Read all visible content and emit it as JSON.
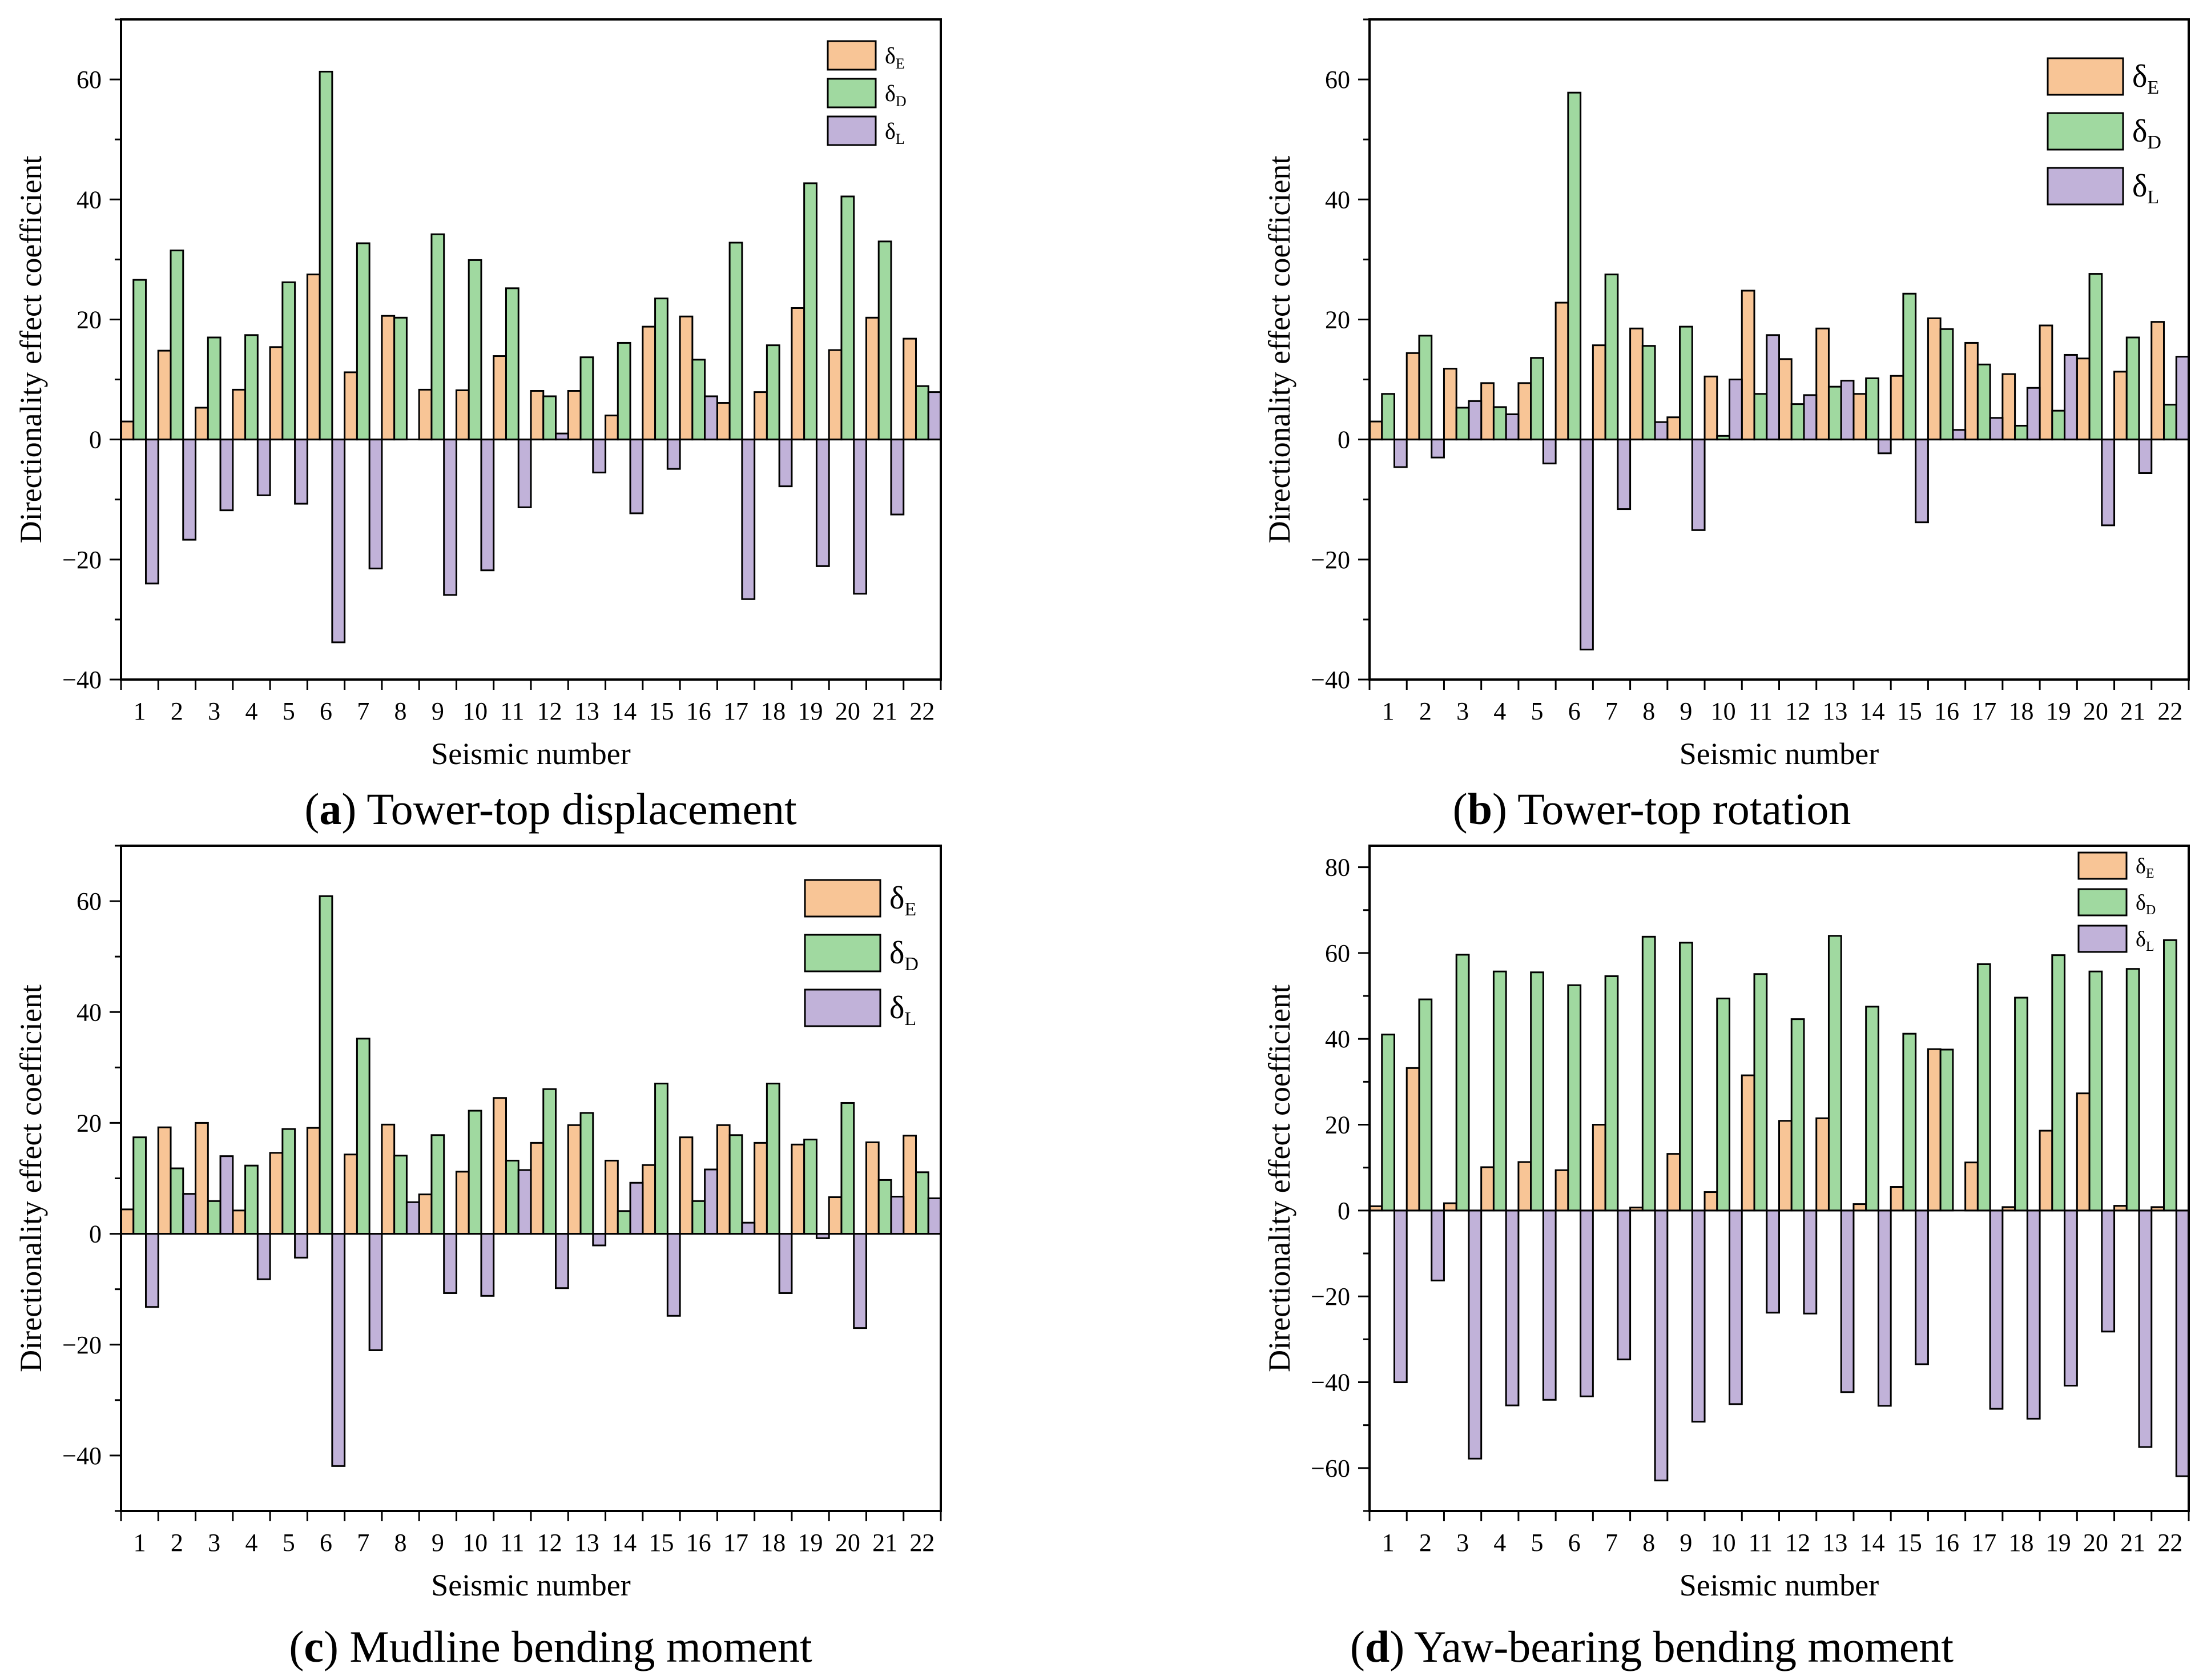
{
  "colors": {
    "E": "#F8C596",
    "D": "#A0D9A0",
    "L": "#C1B2D9",
    "edge": "#000000"
  },
  "chart_data": [
    {
      "type": "bar",
      "caption_letter": "a",
      "caption_text": "Tower-top displacement",
      "xlabel": "Seismic number",
      "ylabel": "Directionality effect coefficient",
      "ylim": [
        -40,
        70
      ],
      "yticks": [
        -40,
        -20,
        0,
        20,
        40,
        60
      ],
      "categories": [
        "1",
        "2",
        "3",
        "4",
        "5",
        "6",
        "7",
        "8",
        "9",
        "10",
        "11",
        "12",
        "13",
        "14",
        "15",
        "16",
        "17",
        "18",
        "19",
        "20",
        "21",
        "22"
      ],
      "legend_position": "top-right",
      "series": [
        {
          "key": "E",
          "name": "δE",
          "values": [
            3,
            14.8,
            5.3,
            8.3,
            15.4,
            27.5,
            11.2,
            20.6,
            8.3,
            8.2,
            13.9,
            8.1,
            8.1,
            4.0,
            18.8,
            20.5,
            6.1,
            7.9,
            21.9,
            14.9,
            20.3,
            16.8
          ]
        },
        {
          "key": "D",
          "name": "δD",
          "values": [
            26.6,
            31.5,
            17.0,
            17.4,
            26.2,
            61.3,
            32.7,
            20.3,
            34.2,
            29.9,
            25.2,
            7.2,
            13.7,
            16.1,
            23.5,
            13.3,
            32.8,
            15.7,
            42.7,
            40.5,
            33.0,
            8.9
          ]
        },
        {
          "key": "L",
          "name": "δL",
          "values": [
            -24,
            -16.7,
            -11.8,
            -9.3,
            -10.7,
            -33.8,
            -21.5,
            0,
            -25.9,
            -21.8,
            -11.3,
            1.0,
            -5.5,
            -12.3,
            -4.9,
            7.2,
            -26.6,
            -7.8,
            -21.1,
            -25.7,
            -12.5,
            7.9
          ]
        }
      ]
    },
    {
      "type": "bar",
      "caption_letter": "b",
      "caption_text": "Tower-top rotation",
      "xlabel": "Seismic number",
      "ylabel": "Directionality effect coefficient",
      "ylim": [
        -40,
        70
      ],
      "yticks": [
        -40,
        -20,
        0,
        20,
        40,
        60
      ],
      "categories": [
        "1",
        "2",
        "3",
        "4",
        "5",
        "6",
        "7",
        "8",
        "9",
        "10",
        "11",
        "12",
        "13",
        "14",
        "15",
        "16",
        "17",
        "18",
        "19",
        "20",
        "21",
        "22"
      ],
      "legend_position": "top-right",
      "series": [
        {
          "key": "E",
          "name": "δE",
          "values": [
            3,
            14.4,
            11.8,
            9.4,
            9.4,
            22.8,
            15.7,
            18.5,
            3.7,
            10.5,
            24.8,
            13.4,
            18.5,
            7.6,
            10.6,
            20.2,
            16.1,
            10.9,
            19.0,
            13.5,
            11.3,
            19.6
          ]
        },
        {
          "key": "D",
          "name": "δD",
          "values": [
            7.6,
            17.3,
            5.3,
            5.4,
            13.6,
            57.8,
            27.5,
            15.6,
            18.8,
            0.6,
            7.6,
            5.9,
            8.8,
            10.2,
            24.3,
            18.4,
            12.5,
            2.3,
            4.8,
            27.6,
            17.0,
            5.8
          ]
        },
        {
          "key": "L",
          "name": "δL",
          "values": [
            -4.6,
            -3.0,
            6.4,
            4.2,
            -4.0,
            -35.0,
            -11.6,
            2.9,
            -15.1,
            10.0,
            17.4,
            7.4,
            9.8,
            -2.3,
            -13.8,
            1.6,
            3.6,
            8.6,
            14.1,
            -14.3,
            -5.6,
            13.8
          ]
        }
      ]
    },
    {
      "type": "bar",
      "caption_letter": "c",
      "caption_text": "Mudline bending moment",
      "xlabel": "Seismic number",
      "ylabel": "Directionality effect coefficient",
      "ylim": [
        -50,
        70
      ],
      "yticks": [
        -40,
        -20,
        0,
        20,
        40,
        60
      ],
      "categories": [
        "1",
        "2",
        "3",
        "4",
        "5",
        "6",
        "7",
        "8",
        "9",
        "10",
        "11",
        "12",
        "13",
        "14",
        "15",
        "16",
        "17",
        "18",
        "19",
        "20",
        "21",
        "22"
      ],
      "legend_position": "top-right",
      "series": [
        {
          "key": "E",
          "name": "δE",
          "values": [
            4.4,
            19.2,
            20.0,
            4.2,
            14.6,
            19.1,
            14.3,
            19.7,
            7.1,
            11.2,
            24.5,
            16.4,
            19.6,
            13.2,
            12.4,
            17.4,
            19.6,
            16.4,
            16.1,
            6.6,
            16.5,
            17.7
          ]
        },
        {
          "key": "D",
          "name": "δD",
          "values": [
            17.4,
            11.8,
            5.9,
            12.3,
            18.9,
            60.9,
            35.2,
            14.1,
            17.8,
            22.2,
            13.2,
            26.1,
            21.8,
            4.1,
            27.1,
            5.9,
            17.8,
            27.1,
            17.0,
            23.6,
            9.7,
            11.1
          ]
        },
        {
          "key": "L",
          "name": "δL",
          "values": [
            -13.2,
            7.2,
            14.0,
            -8.2,
            -4.3,
            -41.9,
            -21.0,
            5.7,
            -10.7,
            -11.2,
            11.5,
            -9.8,
            -2.1,
            9.2,
            -14.8,
            11.6,
            2.0,
            -10.7,
            -0.8,
            -17.0,
            6.7,
            6.4
          ]
        }
      ]
    },
    {
      "type": "bar",
      "caption_letter": "d",
      "caption_text": "Yaw-bearing bending moment",
      "xlabel": "Seismic number",
      "ylabel": "Directionality effect coefficient",
      "ylim": [
        -70,
        85
      ],
      "yticks": [
        -60,
        -40,
        -20,
        0,
        20,
        40,
        60,
        80
      ],
      "categories": [
        "1",
        "2",
        "3",
        "4",
        "5",
        "6",
        "7",
        "8",
        "9",
        "10",
        "11",
        "12",
        "13",
        "14",
        "15",
        "16",
        "17",
        "18",
        "19",
        "20",
        "21",
        "22"
      ],
      "legend_position": "top-right",
      "series": [
        {
          "key": "E",
          "name": "δE",
          "values": [
            1.0,
            33.2,
            1.7,
            10.1,
            11.3,
            9.4,
            20.0,
            0.7,
            13.2,
            4.3,
            31.5,
            20.9,
            21.5,
            1.5,
            5.5,
            37.6,
            11.2,
            0.8,
            18.6,
            27.3,
            1.1,
            0.8
          ]
        },
        {
          "key": "D",
          "name": "δD",
          "values": [
            41.0,
            49.2,
            59.6,
            55.7,
            55.5,
            52.5,
            54.6,
            63.8,
            62.4,
            49.4,
            55.1,
            44.6,
            64.0,
            47.5,
            41.2,
            37.5,
            57.4,
            49.6,
            59.5,
            55.7,
            56.3,
            63.0
          ]
        },
        {
          "key": "L",
          "name": "δL",
          "values": [
            -40.0,
            -16.3,
            -57.8,
            -45.4,
            -44.1,
            -43.3,
            -34.7,
            -62.9,
            -49.2,
            -45.1,
            -23.8,
            -24.0,
            -42.3,
            -45.5,
            -35.8,
            0,
            -46.2,
            -48.5,
            -40.8,
            -28.2,
            -55.1,
            -61.9
          ]
        }
      ]
    }
  ]
}
